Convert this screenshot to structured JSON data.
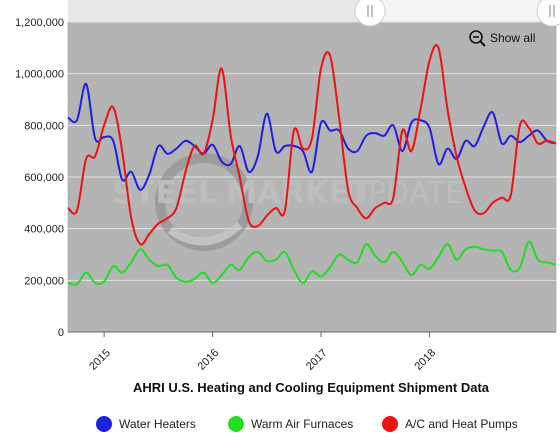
{
  "toolbar": {
    "show_all_label": "Show all",
    "zoom_icon": "zoom-out-icon",
    "slider_handle_icon": "drag-handle-icon"
  },
  "watermark": {
    "part1": "STEEL",
    "part2": "MARKET",
    "part3": "UPDATE"
  },
  "chart_data": {
    "type": "line",
    "title": "AHRI U.S. Heating and Cooling Equipment Shipment Data",
    "xlabel": "",
    "ylabel": "",
    "x_range": [
      "2014-09",
      "2019-03"
    ],
    "ylim": [
      0,
      1200000
    ],
    "y_ticks": [
      0,
      200000,
      400000,
      600000,
      800000,
      1000000,
      1200000
    ],
    "y_tick_labels": [
      "0",
      "200,000",
      "400,000",
      "600,000",
      "800,000",
      "1,000,000",
      "1,200,000"
    ],
    "x_tick_labels": [
      "2015",
      "2016",
      "2017",
      "2018"
    ],
    "x_tick_positions": [
      "2015-01",
      "2016-01",
      "2017-01",
      "2018-01"
    ],
    "grid": true,
    "legend_position": "bottom",
    "x": [
      "2014-09",
      "2014-10",
      "2014-11",
      "2014-12",
      "2015-01",
      "2015-02",
      "2015-03",
      "2015-04",
      "2015-05",
      "2015-06",
      "2015-07",
      "2015-08",
      "2015-09",
      "2015-10",
      "2015-11",
      "2015-12",
      "2016-01",
      "2016-02",
      "2016-03",
      "2016-04",
      "2016-05",
      "2016-06",
      "2016-07",
      "2016-08",
      "2016-09",
      "2016-10",
      "2016-11",
      "2016-12",
      "2017-01",
      "2017-02",
      "2017-03",
      "2017-04",
      "2017-05",
      "2017-06",
      "2017-07",
      "2017-08",
      "2017-09",
      "2017-10",
      "2017-11",
      "2017-12",
      "2018-01",
      "2018-02",
      "2018-03",
      "2018-04",
      "2018-05",
      "2018-06",
      "2018-07",
      "2018-08",
      "2018-09",
      "2018-10",
      "2018-11",
      "2018-12",
      "2019-01",
      "2019-02",
      "2019-03"
    ],
    "series": [
      {
        "name": "Water Heaters",
        "color": "#1f1fe0",
        "values": [
          830000,
          820000,
          960000,
          750000,
          755000,
          740000,
          590000,
          620000,
          550000,
          610000,
          720000,
          690000,
          710000,
          740000,
          720000,
          690000,
          725000,
          660000,
          650000,
          720000,
          620000,
          680000,
          845000,
          700000,
          720000,
          720000,
          700000,
          620000,
          810000,
          780000,
          780000,
          710000,
          700000,
          760000,
          770000,
          760000,
          800000,
          700000,
          810000,
          820000,
          790000,
          650000,
          710000,
          670000,
          740000,
          720000,
          795000,
          850000,
          730000,
          760000,
          735000,
          760000,
          780000,
          740000,
          730000
        ]
      },
      {
        "name": "Warm Air Furnaces",
        "color": "#22dd22",
        "values": [
          190000,
          185000,
          230000,
          190000,
          195000,
          255000,
          230000,
          270000,
          320000,
          280000,
          255000,
          260000,
          210000,
          195000,
          205000,
          230000,
          190000,
          220000,
          260000,
          240000,
          290000,
          310000,
          275000,
          280000,
          310000,
          240000,
          190000,
          235000,
          215000,
          250000,
          300000,
          280000,
          270000,
          340000,
          295000,
          270000,
          310000,
          270000,
          220000,
          260000,
          245000,
          290000,
          340000,
          280000,
          320000,
          330000,
          320000,
          315000,
          310000,
          240000,
          250000,
          350000,
          280000,
          270000,
          260000
        ]
      },
      {
        "name": "A/C and Heat Pumps",
        "color": "#ee1111",
        "values": [
          480000,
          470000,
          670000,
          680000,
          800000,
          870000,
          700000,
          440000,
          340000,
          380000,
          420000,
          440000,
          480000,
          620000,
          720000,
          690000,
          820000,
          1020000,
          760000,
          600000,
          430000,
          410000,
          450000,
          480000,
          470000,
          780000,
          710000,
          750000,
          1020000,
          1070000,
          830000,
          550000,
          480000,
          440000,
          480000,
          500000,
          520000,
          780000,
          700000,
          860000,
          1050000,
          1100000,
          860000,
          680000,
          560000,
          470000,
          460000,
          500000,
          520000,
          530000,
          800000,
          790000,
          730000,
          740000,
          730000
        ]
      }
    ]
  }
}
